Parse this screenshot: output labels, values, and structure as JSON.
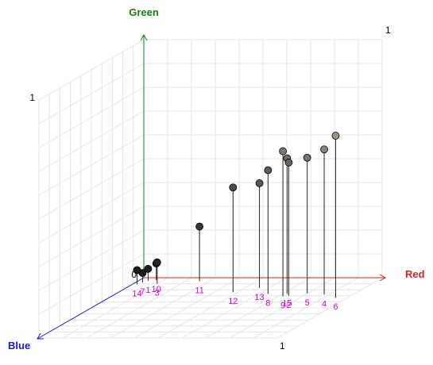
{
  "colors": {
    "red_axis": "#dd2222",
    "green_axis": "#148014",
    "blue_axis": "#1a1ad8",
    "label": "#d000d0",
    "grid": "#e4e4e4",
    "stem": "#222222"
  },
  "chart_data": {
    "type": "scatter",
    "subtype": "3d-scatter-with-stems",
    "axes": {
      "x": {
        "label": "Red",
        "range": [
          0,
          1
        ],
        "tick_labels": [
          "1"
        ]
      },
      "y": {
        "label": "Green",
        "range": [
          0,
          1
        ],
        "tick_labels": [
          "0",
          "1"
        ]
      },
      "z": {
        "label": "Blue",
        "range": [
          0,
          1
        ],
        "tick_labels": [
          "1"
        ]
      }
    },
    "grid": true,
    "points": [
      {
        "label": "1",
        "red": 0.04,
        "green": 0.05,
        "blue": 0.05,
        "color": "#202020"
      },
      {
        "label": "2",
        "red": 0.74,
        "green": 0.56,
        "blue": 0.3,
        "color": "#6a645c"
      },
      {
        "label": "3",
        "red": 0.1,
        "green": 0.09,
        "blue": 0.1,
        "color": "#262626"
      },
      {
        "label": "4",
        "red": 0.88,
        "green": 0.61,
        "blue": 0.28,
        "color": "#8a8278"
      },
      {
        "label": "5",
        "red": 0.8,
        "green": 0.57,
        "blue": 0.26,
        "color": "#7a7268"
      },
      {
        "label": "6",
        "red": 0.95,
        "green": 0.68,
        "blue": 0.33,
        "color": "#a09688"
      },
      {
        "label": "7",
        "red": 0.03,
        "green": 0.04,
        "blue": 0.08,
        "color": "#1e1e1e"
      },
      {
        "label": "8",
        "red": 0.64,
        "green": 0.52,
        "blue": 0.27,
        "color": "#605a52"
      },
      {
        "label": "9",
        "red": 0.72,
        "green": 0.61,
        "blue": 0.31,
        "color": "#807870"
      },
      {
        "label": "10",
        "red": 0.07,
        "green": 0.07,
        "blue": 0.04,
        "color": "#242424"
      },
      {
        "label": "11",
        "red": 0.26,
        "green": 0.23,
        "blue": 0.06,
        "color": "#363636"
      },
      {
        "label": "12",
        "red": 0.48,
        "green": 0.44,
        "blue": 0.24,
        "color": "#504c46"
      },
      {
        "label": "13",
        "red": 0.56,
        "green": 0.44,
        "blue": 0.17,
        "color": "#58544e"
      },
      {
        "label": "14",
        "red": 0.02,
        "green": 0.06,
        "blue": 0.11,
        "color": "#1c1c1c"
      },
      {
        "label": "15",
        "red": 0.72,
        "green": 0.57,
        "blue": 0.27,
        "color": "#706a62"
      }
    ]
  }
}
